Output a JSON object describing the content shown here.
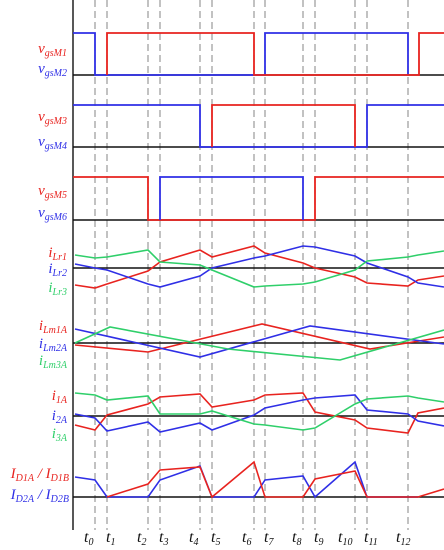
{
  "colors": {
    "red": "#e8231f",
    "blue": "#2f2fe6",
    "green": "#2fcf6a",
    "axis": "#111111",
    "dash": "#9a9a9a"
  },
  "labels": {
    "p1a": {
      "base": "v",
      "sub": "gsM1"
    },
    "p1b": {
      "base": "v",
      "sub": "gsM2"
    },
    "p2a": {
      "base": "v",
      "sub": "gsM3"
    },
    "p2b": {
      "base": "v",
      "sub": "gsM4"
    },
    "p3a": {
      "base": "v",
      "sub": "gsM5"
    },
    "p3b": {
      "base": "v",
      "sub": "gsM6"
    },
    "p4a": {
      "base": "i",
      "sub": "Lr1"
    },
    "p4b": {
      "base": "i",
      "sub": "Lr2"
    },
    "p4c": {
      "base": "i",
      "sub": "Lr3"
    },
    "p5a": {
      "base": "i",
      "sub": "Lm1A"
    },
    "p5b": {
      "base": "i",
      "sub": "Lm2A"
    },
    "p5c": {
      "base": "i",
      "sub": "Lm3A"
    },
    "p6a": {
      "base": "i",
      "sub": "1A"
    },
    "p6b": {
      "base": "i",
      "sub": "2A"
    },
    "p6c": {
      "base": "i",
      "sub": "3A"
    },
    "p7a": {
      "base": "I",
      "sub1": "D1A",
      "mid": " / I",
      "sub2": "D1B"
    },
    "p7b": {
      "base": "I",
      "sub1": "D2A",
      "mid": " / I",
      "sub2": "D2B"
    }
  },
  "time_labels": [
    {
      "base": "t",
      "sub": "0"
    },
    {
      "base": "t",
      "sub": "1"
    },
    {
      "base": "t",
      "sub": "2"
    },
    {
      "base": "t",
      "sub": "3"
    },
    {
      "base": "t",
      "sub": "4"
    },
    {
      "base": "t",
      "sub": "5"
    },
    {
      "base": "t",
      "sub": "6"
    },
    {
      "base": "t",
      "sub": "7"
    },
    {
      "base": "t",
      "sub": "8"
    },
    {
      "base": "t",
      "sub": "9"
    },
    {
      "base": "t",
      "sub": "10"
    },
    {
      "base": "t",
      "sub": "11"
    },
    {
      "base": "t",
      "sub": "12"
    }
  ]
}
